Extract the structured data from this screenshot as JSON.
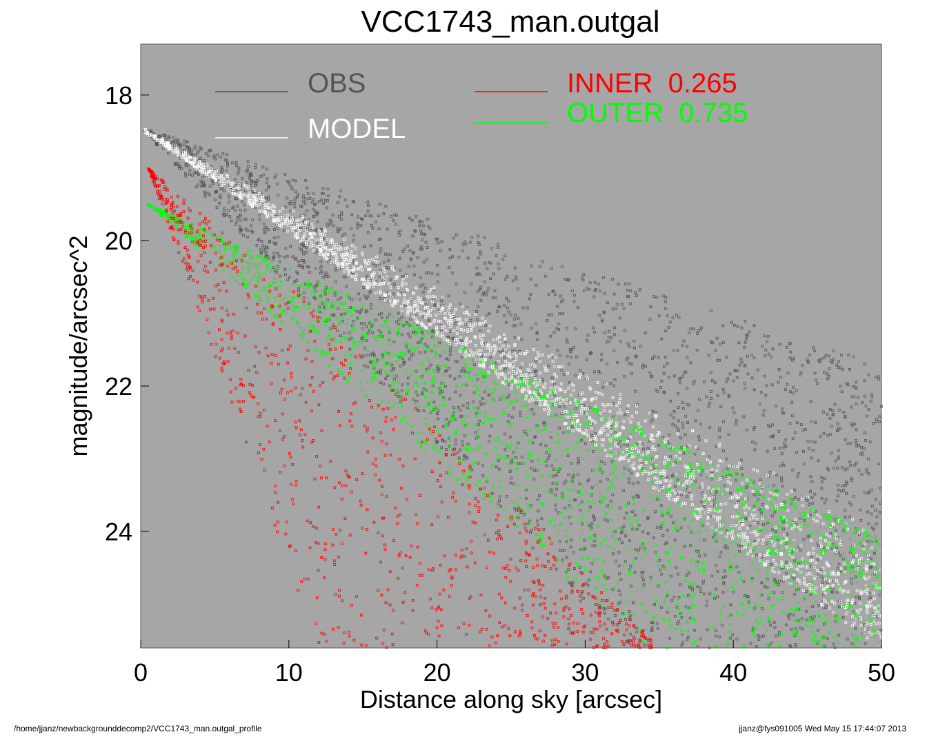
{
  "chart_data": {
    "type": "scatter",
    "title": "VCC1743_man.outgal",
    "xlabel": "Distance along sky [arcsec]",
    "ylabel": "magnitude/arcsec^2",
    "xlim": [
      0,
      50
    ],
    "ylim": [
      25.6,
      17.3
    ],
    "y_inverted": true,
    "x_ticks": [
      0,
      10,
      20,
      30,
      40,
      50
    ],
    "y_ticks": [
      18,
      20,
      22,
      24
    ],
    "background_color": "#a6a6a6",
    "grid": false,
    "legend": {
      "position": "top",
      "entries": [
        {
          "label": "OBS",
          "color": "#555555"
        },
        {
          "label": "MODEL",
          "color": "#ffffff"
        },
        {
          "label": "INNER  0.265",
          "color": "#ff0000"
        },
        {
          "label": "OUTER  0.735",
          "color": "#00ff00"
        }
      ]
    },
    "series": [
      {
        "name": "OBS",
        "color": "#555555",
        "description_points": [
          [
            0.2,
            18.45
          ],
          [
            10,
            20.6
          ],
          [
            20,
            21.5
          ],
          [
            30,
            21.9
          ],
          [
            40,
            22.2
          ],
          [
            50,
            22.3
          ]
        ],
        "spread_upper": [
          [
            0.2,
            18.45
          ],
          [
            50,
            21.7
          ]
        ],
        "spread_lower": [
          [
            0.2,
            18.5
          ],
          [
            33,
            25.6
          ]
        ]
      },
      {
        "name": "MODEL",
        "color": "#ffffff",
        "upper_edge": [
          [
            0.2,
            18.45
          ],
          [
            50,
            24.0
          ]
        ],
        "lower_edge": [
          [
            0.2,
            18.5
          ],
          [
            50,
            25.6
          ]
        ]
      },
      {
        "name": "INNER  0.265",
        "color": "#ff0000",
        "upper_edge": [
          [
            0.5,
            19.0
          ],
          [
            15,
            21.5
          ],
          [
            35,
            25.6
          ]
        ],
        "lower_edge": [
          [
            0.5,
            19.0
          ],
          [
            12,
            25.6
          ]
        ]
      },
      {
        "name": "OUTER  0.735",
        "color": "#00ff00",
        "upper_edge": [
          [
            0.5,
            19.5
          ],
          [
            50,
            24.1
          ]
        ],
        "lower_edge": [
          [
            0.5,
            19.5
          ],
          [
            34,
            25.6
          ]
        ]
      }
    ]
  },
  "footer": {
    "path": "/home/jjanz/newbackgrounddecomp2/VCC1743_man.outgal_profile",
    "stamp": "jjanz@fys091005  Wed May 15 17:44:07 2013"
  }
}
